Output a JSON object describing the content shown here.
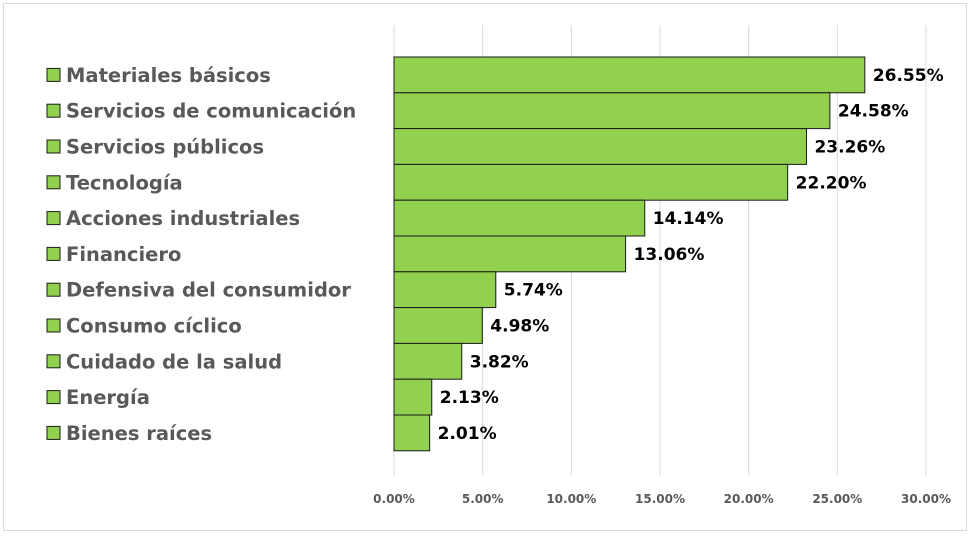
{
  "chart_data": {
    "type": "bar",
    "orientation": "horizontal",
    "categories": [
      "Materiales básicos",
      "Servicios de comunicación",
      "Servicios públicos",
      "Tecnología",
      "Acciones industriales",
      "Financiero",
      "Defensiva del consumidor",
      "Consumo cíclico",
      "Cuidado de la salud",
      "Energía",
      "Bienes raíces"
    ],
    "values": [
      26.55,
      24.58,
      23.26,
      22.2,
      14.14,
      13.06,
      5.74,
      4.98,
      3.82,
      2.13,
      2.01
    ],
    "value_labels": [
      "26.55%",
      "24.58%",
      "23.26%",
      "22.20%",
      "14.14%",
      "13.06%",
      "5.74%",
      "4.98%",
      "3.82%",
      "2.13%",
      "2.01%"
    ],
    "xlim": [
      0,
      30
    ],
    "x_ticks": [
      0,
      5,
      10,
      15,
      20,
      25,
      30
    ],
    "x_tick_labels": [
      "0.00%",
      "5.00%",
      "10.00%",
      "15.00%",
      "20.00%",
      "25.00%",
      "30.00%"
    ],
    "grid": "vertical",
    "legend": "left",
    "title": "",
    "xlabel": "",
    "ylabel": "",
    "colors": {
      "bar_fill": "#92d050",
      "bar_stroke": "#1a1a1a",
      "gridline": "#d9d9d9",
      "category_text": "#595959",
      "value_text": "#000000"
    }
  }
}
